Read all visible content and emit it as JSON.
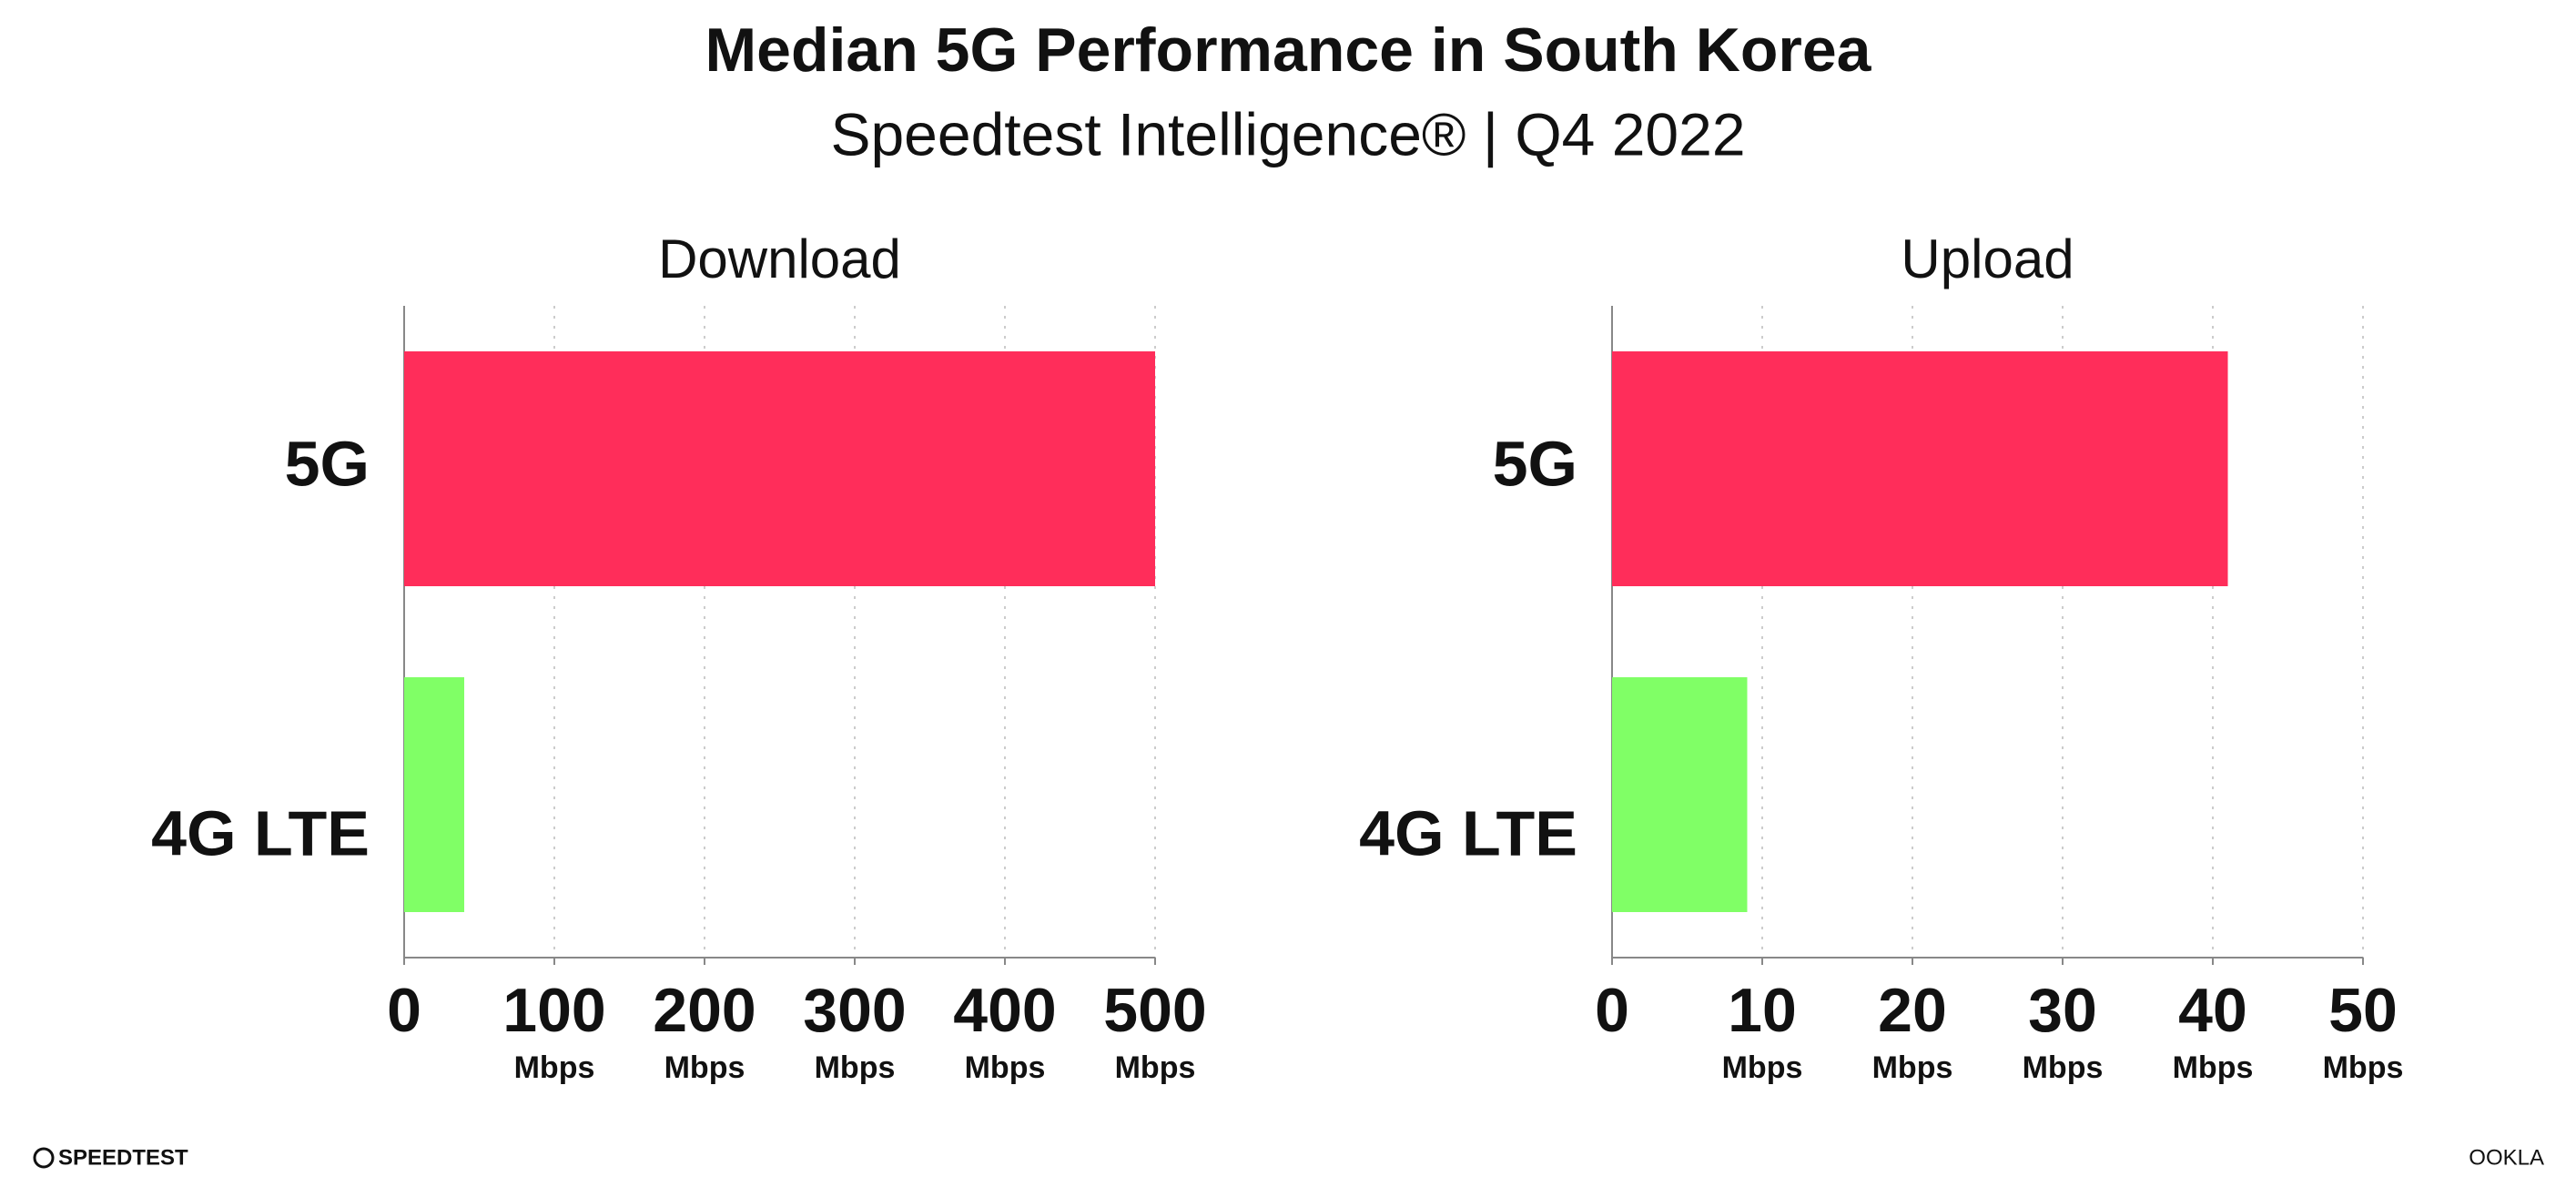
{
  "header": {
    "title": "Median 5G Performance in South Korea",
    "subtitle": "Speedtest Intelligence® | Q4 2022"
  },
  "chart_data": [
    {
      "type": "bar",
      "orientation": "horizontal",
      "title": "Download",
      "categories": [
        "5G",
        "4G LTE"
      ],
      "values": [
        500,
        40
      ],
      "colors": [
        "#ff2d5a",
        "#80ff66"
      ],
      "xlim": [
        0,
        500
      ],
      "xticks": [
        0,
        {
          "value": 100,
          "label": "100 Mbps"
        },
        {
          "value": 200,
          "label": "200 Mbps"
        },
        {
          "value": 300,
          "label": "300 Mbps"
        },
        {
          "value": 400,
          "label": "400 Mbps"
        },
        {
          "value": 500,
          "label": "500 Mbps"
        }
      ],
      "grid": true
    },
    {
      "type": "bar",
      "orientation": "horizontal",
      "title": "Upload",
      "categories": [
        "5G",
        "4G LTE"
      ],
      "values": [
        41,
        9
      ],
      "colors": [
        "#ff2d5a",
        "#80ff66"
      ],
      "xlim": [
        0,
        50
      ],
      "xticks": [
        0,
        {
          "value": 10,
          "label": "10 Mbps"
        },
        {
          "value": 20,
          "label": "20 Mbps"
        },
        {
          "value": 30,
          "label": "30 Mbps"
        },
        {
          "value": 40,
          "label": "40 Mbps"
        },
        {
          "value": 50,
          "label": "50 Mbps"
        }
      ],
      "grid": true
    }
  ],
  "footer": {
    "left": "SPEEDTEST",
    "right": "OOKLA"
  }
}
